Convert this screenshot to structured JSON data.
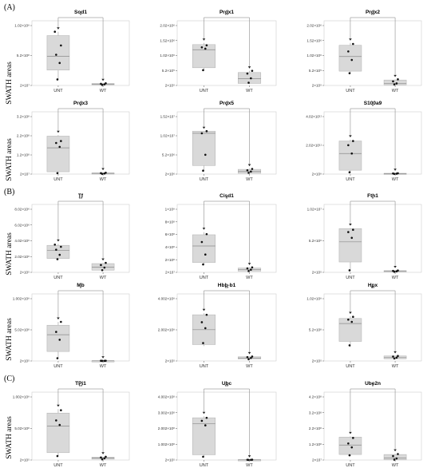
{
  "sections": [
    "(A)",
    "(B)",
    "(C)"
  ],
  "ylabel": "SWATH areas",
  "chart_data": [
    {
      "type": "box",
      "title": "Sod1",
      "significance": "*",
      "categories": [
        "UNT",
        "WT"
      ],
      "yticks": [
        "2×10⁷",
        "5.2×10⁸",
        "1.02×10⁹"
      ],
      "ylim": [
        20000000.0,
        1200000000.0
      ],
      "groups": [
        {
          "q1": 300000000.0,
          "median": 550000000.0,
          "q3": 930000000.0,
          "min": 130000000.0,
          "max": 1000000000.0,
          "points": [
            130000000.0,
            430000000.0,
            580000000.0,
            750000000.0,
            1000000000.0
          ]
        },
        {
          "q1": 35000000.0,
          "median": 45000000.0,
          "q3": 55000000.0,
          "min": 30000000.0,
          "max": 60000000.0,
          "points": [
            30000000.0,
            40000000.0,
            50000000.0,
            60000000.0
          ]
        }
      ]
    },
    {
      "type": "box",
      "title": "Prdx1",
      "significance": "**",
      "categories": [
        "UNT",
        "WT"
      ],
      "yticks": [
        "2×10⁵",
        "5.2×10⁵",
        "1.02×10⁶",
        "1.52×10⁶",
        "2.02×10⁶"
      ],
      "ylim": [
        200000.0,
        2100000.0
      ],
      "groups": [
        {
          "q1": 720000.0,
          "median": 1250000.0,
          "q3": 1400000.0,
          "min": 650000.0,
          "max": 1450000.0,
          "points": [
            650000.0,
            1280000.0,
            1320000.0,
            1380000.0
          ]
        },
        {
          "q1": 260000.0,
          "median": 400000.0,
          "q3": 580000.0,
          "min": 240000.0,
          "max": 630000.0,
          "points": [
            280000.0,
            410000.0,
            550000.0,
            630000.0
          ]
        }
      ]
    },
    {
      "type": "box",
      "title": "Prdx2",
      "significance": "**",
      "categories": [
        "UNT",
        "WT"
      ],
      "yticks": [
        "2×10⁵",
        "5.2×10⁵",
        "1.02×10⁶",
        "1.52×10⁶",
        "2.02×10⁶"
      ],
      "ylim": [
        200000.0,
        2100000.0
      ],
      "groups": [
        {
          "q1": 620000.0,
          "median": 1050000.0,
          "q3": 1380000.0,
          "min": 550000.0,
          "max": 1450000.0,
          "points": [
            560000.0,
            950000.0,
            1200000.0,
            1420000.0
          ]
        },
        {
          "q1": 220000.0,
          "median": 260000.0,
          "q3": 360000.0,
          "min": 220000.0,
          "max": 380000.0,
          "points": [
            230000.0,
            260000.0,
            320000.0,
            380000.0
          ]
        }
      ]
    },
    {
      "type": "box",
      "title": "Prdx3",
      "significance": "*",
      "categories": [
        "UNT",
        "WT"
      ],
      "yticks": [
        "2×10⁷",
        "1.2×10⁸",
        "2.2×10⁸",
        "3.2×10⁸"
      ],
      "ylim": [
        20000000.0,
        340000000.0
      ],
      "groups": [
        {
          "q1": 32000000.0,
          "median": 155000000.0,
          "q3": 215000000.0,
          "min": 25000000.0,
          "max": 220000000.0,
          "points": [
            25000000.0,
            160000000.0,
            180000000.0,
            190000000.0
          ]
        },
        {
          "q1": 22000000.0,
          "median": 24000000.0,
          "q3": 26000000.0,
          "min": 20000000.0,
          "max": 28000000.0,
          "points": [
            21000000.0,
            23000000.0,
            25000000.0,
            27000000.0
          ]
        }
      ]
    },
    {
      "type": "box",
      "title": "Prdx5",
      "significance": "*",
      "categories": [
        "UNT",
        "WT"
      ],
      "yticks": [
        "2×10⁶",
        "5.2×10⁶",
        "1.02×10⁷",
        "1.52×10⁷"
      ],
      "ylim": [
        2000000.0,
        16500000.0
      ],
      "groups": [
        {
          "q1": 4000000.0,
          "median": 11500000.0,
          "q3": 12000000.0,
          "min": 2800000.0,
          "max": 12000000.0,
          "points": [
            2800000.0,
            6500000.0,
            11500000.0,
            12000000.0
          ]
        },
        {
          "q1": 2200000.0,
          "median": 2600000.0,
          "q3": 3100000.0,
          "min": 2100000.0,
          "max": 3300000.0,
          "points": [
            2300000.0,
            2600000.0,
            2900000.0,
            3200000.0
          ]
        }
      ]
    },
    {
      "type": "box",
      "title": "S100a9",
      "significance": "*",
      "categories": [
        "UNT",
        "WT"
      ],
      "yticks": [
        "2×10⁹",
        "2.02×10¹¹",
        "4.02×10¹¹"
      ],
      "ylim": [
        2000000000.0,
        450000000000.0
      ],
      "groups": [
        {
          "q1": 30000000000.0,
          "median": 150000000000.0,
          "q3": 240000000000.0,
          "min": 15000000000.0,
          "max": 250000000000.0,
          "points": [
            15000000000.0,
            150000000000.0,
            210000000000.0,
            240000000000.0
          ]
        },
        {
          "q1": 4000000000.0,
          "median": 5000000000.0,
          "q3": 8000000000.0,
          "min": 3000000000.0,
          "max": 9000000000.0,
          "points": [
            3500000000.0,
            5000000000.0,
            7000000000.0,
            8500000000.0
          ]
        }
      ]
    },
    {
      "type": "box",
      "title": "Tf",
      "significance": "**",
      "categories": [
        "UNT",
        "WT"
      ],
      "yticks": [
        "2×10⁵",
        "2.02×10⁶",
        "4.02×10⁶",
        "6.02×10⁶",
        "8.02×10⁶"
      ],
      "ylim": [
        200000.0,
        9500000.0
      ],
      "groups": [
        {
          "q1": 2100000.0,
          "median": 3200000.0,
          "q3": 3900000.0,
          "min": 1900000.0,
          "max": 4100000.0,
          "points": [
            2000000.0,
            2600000.0,
            3300000.0,
            3700000.0,
            4000000.0
          ]
        },
        {
          "q1": 500000.0,
          "median": 900000.0,
          "q3": 1400000.0,
          "min": 400000.0,
          "max": 1500000.0,
          "points": [
            500000.0,
            850000.0,
            1200000.0,
            1500000.0
          ]
        }
      ]
    },
    {
      "type": "box",
      "title": "Cisd1",
      "significance": "*",
      "categories": [
        "UNT",
        "WT"
      ],
      "yticks": [
        "2×10⁷",
        "2×10⁸",
        "4×10⁸",
        "6×10⁸",
        "8×10⁸",
        "1×10⁹"
      ],
      "ylim": [
        20000000.0,
        1050000000.0
      ],
      "groups": [
        {
          "q1": 170000000.0,
          "median": 420000000.0,
          "q3": 590000000.0,
          "min": 130000000.0,
          "max": 630000000.0,
          "points": [
            140000000.0,
            290000000.0,
            480000000.0,
            600000000.0
          ]
        },
        {
          "q1": 38000000.0,
          "median": 60000000.0,
          "q3": 85000000.0,
          "min": 30000000.0,
          "max": 95000000.0,
          "points": [
            40000000.0,
            60000000.0,
            80000000.0,
            95000000.0
          ]
        }
      ]
    },
    {
      "type": "box",
      "title": "Fth1",
      "significance": "*",
      "categories": [
        "UNT",
        "WT"
      ],
      "yticks": [
        "2×10⁵",
        "5.2×10⁶",
        "1.02×10⁷"
      ],
      "ylim": [
        200000.0,
        12000000.0
      ],
      "groups": [
        {
          "q1": 2000000.0,
          "median": 5500000.0,
          "q3": 7800000.0,
          "min": 500000.0,
          "max": 7900000.0,
          "points": [
            550000.0,
            6200000.0,
            7200000.0,
            7600000.0
          ]
        },
        {
          "q1": 300000.0,
          "median": 400000.0,
          "q3": 500000.0,
          "min": 300000.0,
          "max": 550000.0,
          "points": [
            300000.0,
            380000.0,
            450000.0,
            520000.0
          ]
        }
      ]
    },
    {
      "type": "box",
      "title": "Mb",
      "significance": "*",
      "categories": [
        "UNT",
        "WT"
      ],
      "yticks": [
        "2×10⁵",
        "5.02×10⁸",
        "1.002×10⁹"
      ],
      "ylim": [
        200000.0,
        1200000000.0
      ],
      "groups": [
        {
          "q1": 170000000.0,
          "median": 470000000.0,
          "q3": 640000000.0,
          "min": 50000000.0,
          "max": 700000000.0,
          "points": [
            50000000.0,
            380000000.0,
            520000000.0,
            700000000.0
          ]
        },
        {
          "q1": 2500000.0,
          "median": 3500000.0,
          "q3": 4500000.0,
          "min": 2000000.0,
          "max": 5000000.0,
          "points": [
            2500000.0,
            3300000.0,
            4000000.0,
            4800000.0
          ]
        }
      ]
    },
    {
      "type": "box",
      "title": "Hbb-b1",
      "significance": "**",
      "categories": [
        "UNT",
        "WT"
      ],
      "yticks": [
        "2×10⁵",
        "2.002×10⁹",
        "4.002×10⁹"
      ],
      "ylim": [
        200000.0,
        4500000000.0
      ],
      "groups": [
        {
          "q1": 1100000000.0,
          "median": 2100000000.0,
          "q3": 3100000000.0,
          "min": 1000000000.0,
          "max": 3200000000.0,
          "points": [
            1200000000.0,
            2200000000.0,
            2600000000.0,
            3100000000.0
          ]
        },
        {
          "q1": 140000000.0,
          "median": 200000000.0,
          "q3": 280000000.0,
          "min": 100000000.0,
          "max": 300000000.0,
          "points": [
            120000000.0,
            200000000.0,
            260000000.0,
            300000000.0
          ]
        }
      ]
    },
    {
      "type": "box",
      "title": "Hpx",
      "significance": "**",
      "categories": [
        "UNT",
        "WT"
      ],
      "yticks": [
        "2×10⁵",
        "5.2×10⁸",
        "1.02×10⁹"
      ],
      "ylim": [
        200000.0,
        1200000000.0
      ],
      "groups": [
        {
          "q1": 350000000.0,
          "median": 670000000.0,
          "q3": 760000000.0,
          "min": 250000000.0,
          "max": 800000000.0,
          "points": [
            280000000.0,
            700000000.0,
            740000000.0,
            790000000.0
          ]
        },
        {
          "q1": 40000000.0,
          "median": 60000000.0,
          "q3": 90000000.0,
          "min": 30000000.0,
          "max": 95000000.0,
          "points": [
            45000000.0,
            60000000.0,
            80000000.0,
            90000000.0
          ]
        }
      ]
    },
    {
      "type": "box",
      "title": "TPi1",
      "significance": "**",
      "categories": [
        "UNT",
        "WT"
      ],
      "yticks": [
        "2×10⁵",
        "5.02×10⁸",
        "1.002×10⁹"
      ],
      "ylim": [
        200000.0,
        1200000000.0
      ],
      "groups": [
        {
          "q1": 130000000.0,
          "median": 600000000.0,
          "q3": 830000000.0,
          "min": 70000000.0,
          "max": 900000000.0,
          "points": [
            70000000.0,
            620000000.0,
            700000000.0,
            880000000.0
          ]
        },
        {
          "q1": 15000000.0,
          "median": 35000000.0,
          "q3": 50000000.0,
          "min": 10000000.0,
          "max": 60000000.0,
          "points": [
            12000000.0,
            30000000.0,
            45000000.0,
            58000000.0
          ]
        }
      ]
    },
    {
      "type": "box",
      "title": "Ubc",
      "significance": "**",
      "categories": [
        "UNT",
        "WT"
      ],
      "yticks": [
        "2×10⁵",
        "1.002×10⁸",
        "2.002×10⁸",
        "3.002×10⁸",
        "4.002×10⁸"
      ],
      "ylim": [
        200000.0,
        450000000.0
      ],
      "groups": [
        {
          "q1": 35000000.0,
          "median": 240000000.0,
          "q3": 280000000.0,
          "min": 22000000.0,
          "max": 290000000.0,
          "points": [
            22000000.0,
            230000000.0,
            260000000.0,
            280000000.0
          ]
        },
        {
          "q1": 1000000.0,
          "median": 1500000.0,
          "q3": 2200000.0,
          "min": 800000.0,
          "max": 2500000.0,
          "points": [
            900000.0,
            1400000.0,
            1900000.0,
            2400000.0
          ]
        }
      ]
    },
    {
      "type": "box",
      "title": "Ube2n",
      "significance": "*",
      "categories": [
        "UNT",
        "WT"
      ],
      "yticks": [
        "2×10⁷",
        "1.2×10⁸",
        "2.2×10⁸",
        "3.2×10⁸",
        "4.2×10⁸"
      ],
      "ylim": [
        20000000.0,
        450000000.0
      ],
      "groups": [
        {
          "q1": 55000000.0,
          "median": 115000000.0,
          "q3": 165000000.0,
          "min": 45000000.0,
          "max": 170000000.0,
          "points": [
            50000000.0,
            100000000.0,
            125000000.0,
            160000000.0
          ]
        },
        {
          "q1": 22000000.0,
          "median": 32000000.0,
          "q3": 55000000.0,
          "min": 20000000.0,
          "max": 60000000.0,
          "points": [
            22000000.0,
            30000000.0,
            45000000.0,
            58000000.0
          ]
        }
      ]
    }
  ]
}
